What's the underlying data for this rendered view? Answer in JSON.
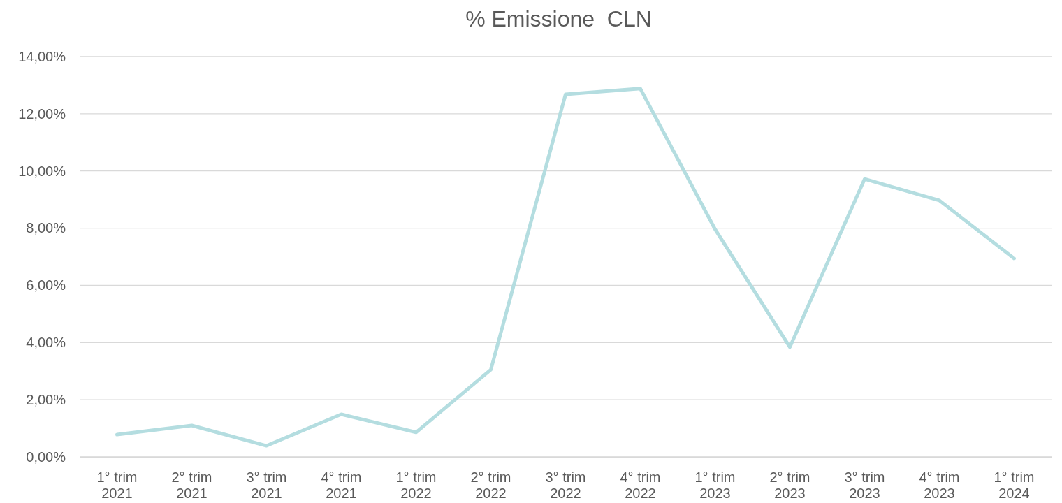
{
  "chart_data": {
    "type": "line",
    "title": "% Emissione  CLN",
    "categories": [
      "1° trim 2021",
      "2° trim 2021",
      "3° trim 2021",
      "4° trim 2021",
      "1° trim 2022",
      "2° trim 2022",
      "3° trim 2022",
      "4° trim 2022",
      "1° trim 2023",
      "2° trim 2023",
      "3° trim 2023",
      "4° trim 2023",
      "1° trim 2024"
    ],
    "series": [
      {
        "color": "#b4dde0",
        "values": [
          0.78,
          1.1,
          0.39,
          1.49,
          0.86,
          3.05,
          12.68,
          12.88,
          7.96,
          3.84,
          9.72,
          8.97,
          6.94
        ]
      }
    ],
    "ylim": [
      0,
      14
    ],
    "yticks": [
      {
        "value": 0,
        "label": "0,00%"
      },
      {
        "value": 2,
        "label": "2,00%"
      },
      {
        "value": 4,
        "label": "4,00%"
      },
      {
        "value": 6,
        "label": "6,00%"
      },
      {
        "value": 8,
        "label": "8,00%"
      },
      {
        "value": 10,
        "label": "10,00%"
      },
      {
        "value": 12,
        "label": "12,00%"
      },
      {
        "value": 14,
        "label": "14,00%"
      }
    ],
    "grid": "y",
    "marker": "none",
    "line_style": "solid"
  }
}
